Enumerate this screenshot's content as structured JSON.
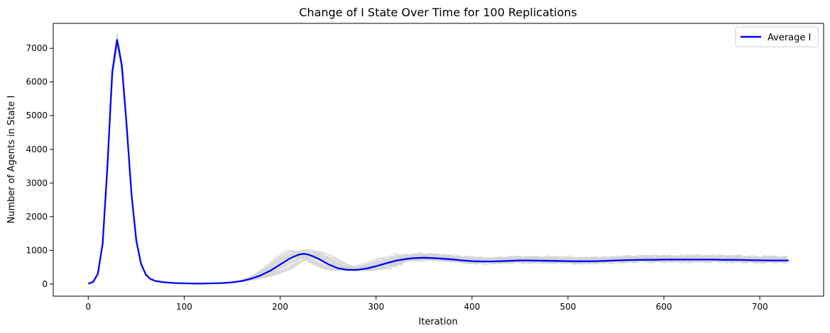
{
  "chart_data": {
    "type": "line",
    "title": "Change of I State Over Time for 100 Replications",
    "xlabel": "Iteration",
    "ylabel": "Number of Agents in State I",
    "xlim": [
      -36.5,
      766.5
    ],
    "ylim": [
      -360,
      7740
    ],
    "xticks": [
      0,
      100,
      200,
      300,
      400,
      500,
      600,
      700
    ],
    "yticks": [
      0,
      1000,
      2000,
      3000,
      4000,
      5000,
      6000,
      7000
    ],
    "grid": false,
    "legend": {
      "position": "top-right",
      "entries": [
        "Average I"
      ]
    },
    "colors": {
      "average": "#0000ff",
      "replications": "#d3d3d3"
    },
    "replications_count": 100,
    "series": [
      {
        "name": "Average I",
        "x": [
          0,
          5,
          10,
          15,
          20,
          25,
          30,
          35,
          40,
          45,
          50,
          55,
          60,
          65,
          70,
          80,
          90,
          100,
          110,
          120,
          130,
          140,
          150,
          160,
          170,
          180,
          190,
          200,
          210,
          220,
          225,
          230,
          240,
          250,
          260,
          270,
          280,
          290,
          300,
          310,
          320,
          330,
          340,
          350,
          360,
          370,
          380,
          390,
          400,
          410,
          420,
          430,
          440,
          450,
          460,
          470,
          480,
          490,
          500,
          510,
          520,
          530,
          540,
          550,
          560,
          570,
          580,
          590,
          600,
          610,
          620,
          630,
          640,
          650,
          660,
          670,
          680,
          690,
          700,
          710,
          720,
          730
        ],
        "y": [
          10,
          60,
          300,
          1200,
          3500,
          6300,
          7250,
          6500,
          4700,
          2700,
          1300,
          600,
          280,
          150,
          90,
          50,
          30,
          20,
          15,
          15,
          20,
          30,
          50,
          90,
          160,
          260,
          400,
          580,
          760,
          880,
          900,
          870,
          750,
          590,
          470,
          420,
          420,
          460,
          530,
          610,
          690,
          740,
          770,
          780,
          770,
          750,
          730,
          700,
          680,
          670,
          670,
          680,
          690,
          700,
          700,
          695,
          690,
          685,
          680,
          675,
          675,
          680,
          690,
          700,
          710,
          715,
          720,
          720,
          725,
          725,
          725,
          725,
          725,
          725,
          720,
          720,
          715,
          710,
          705,
          700,
          700,
          700
        ]
      }
    ]
  }
}
